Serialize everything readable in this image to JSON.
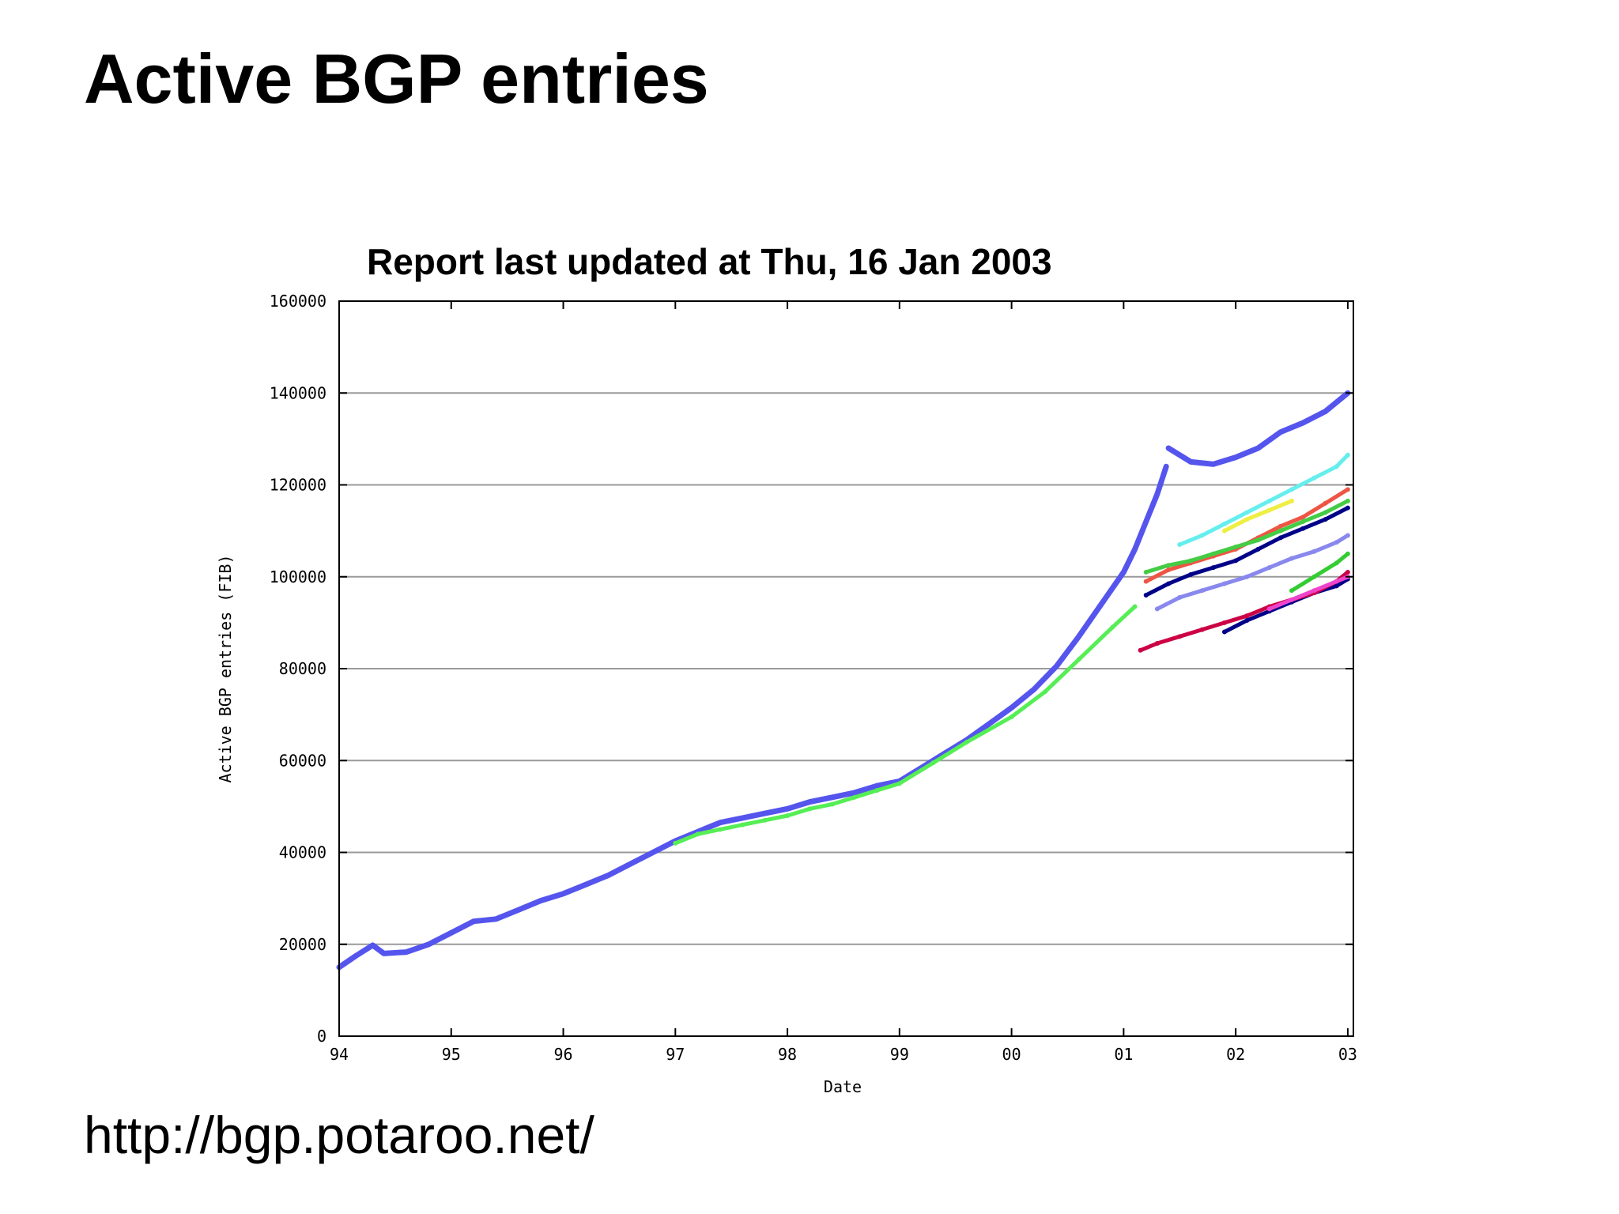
{
  "slide": {
    "title": "Active BGP entries",
    "footer_url": "http://bgp.potaroo.net/"
  },
  "chart_data": {
    "type": "scatter",
    "title": "Report last updated at Thu, 16 Jan 2003",
    "xlabel": "Date",
    "ylabel": "Active BGP entries (FIB)",
    "x_tick_labels": [
      "94",
      "95",
      "96",
      "97",
      "98",
      "99",
      "00",
      "01",
      "02",
      "03"
    ],
    "y_tick_labels": [
      "0",
      "20000",
      "40000",
      "60000",
      "80000",
      "100000",
      "120000",
      "140000",
      "160000"
    ],
    "xlim": [
      1994.0,
      2003.05
    ],
    "ylim": [
      0,
      160000
    ],
    "grid": "horizontal",
    "series": [
      {
        "color": "#5555ee",
        "points": [
          [
            1994.0,
            15000
          ],
          [
            1994.15,
            17500
          ],
          [
            1994.3,
            19800
          ],
          [
            1994.4,
            18000
          ],
          [
            1994.6,
            18300
          ],
          [
            1994.8,
            20000
          ],
          [
            1995.0,
            22500
          ],
          [
            1995.2,
            25000
          ],
          [
            1995.4,
            25500
          ],
          [
            1995.6,
            27500
          ],
          [
            1995.8,
            29500
          ],
          [
            1996.0,
            31000
          ],
          [
            1996.2,
            33000
          ],
          [
            1996.4,
            35000
          ],
          [
            1996.6,
            37500
          ],
          [
            1996.8,
            40000
          ],
          [
            1997.0,
            42500
          ],
          [
            1997.2,
            44500
          ],
          [
            1997.4,
            46500
          ],
          [
            1997.6,
            47500
          ],
          [
            1997.8,
            48500
          ],
          [
            1998.0,
            49500
          ],
          [
            1998.2,
            51000
          ],
          [
            1998.4,
            52000
          ],
          [
            1998.6,
            53000
          ],
          [
            1998.8,
            54500
          ],
          [
            1999.0,
            55500
          ],
          [
            1999.2,
            58500
          ],
          [
            1999.4,
            61500
          ],
          [
            1999.6,
            64500
          ],
          [
            1999.8,
            68000
          ],
          [
            2000.0,
            71500
          ],
          [
            2000.2,
            75500
          ],
          [
            2000.4,
            80500
          ],
          [
            2000.6,
            87000
          ],
          [
            2000.8,
            94000
          ],
          [
            2001.0,
            101000
          ],
          [
            2001.1,
            106000
          ],
          [
            2001.2,
            112000
          ],
          [
            2001.3,
            118000
          ],
          [
            2001.38,
            124000
          ]
        ]
      },
      {
        "color": "#5555ee",
        "points": [
          [
            2001.4,
            128000
          ],
          [
            2001.6,
            125000
          ],
          [
            2001.8,
            124500
          ],
          [
            2002.0,
            126000
          ],
          [
            2002.2,
            128000
          ],
          [
            2002.4,
            131500
          ],
          [
            2002.6,
            133500
          ],
          [
            2002.8,
            136000
          ],
          [
            2003.0,
            140000
          ]
        ]
      },
      {
        "color": "#55ee55",
        "points": [
          [
            1997.0,
            42000
          ],
          [
            1997.2,
            44000
          ],
          [
            1997.4,
            45000
          ],
          [
            1997.6,
            46000
          ],
          [
            1997.8,
            47000
          ],
          [
            1998.0,
            48000
          ],
          [
            1998.2,
            49500
          ],
          [
            1998.4,
            50500
          ],
          [
            1998.6,
            52000
          ],
          [
            1998.8,
            53500
          ],
          [
            1999.0,
            55000
          ],
          [
            1999.3,
            59500
          ],
          [
            1999.6,
            64000
          ],
          [
            2000.0,
            69500
          ],
          [
            2000.3,
            75000
          ],
          [
            2000.6,
            82000
          ],
          [
            2000.9,
            89000
          ],
          [
            2001.1,
            93500
          ]
        ]
      },
      {
        "color": "#66eeee",
        "points": [
          [
            2001.5,
            107000
          ],
          [
            2001.7,
            109000
          ],
          [
            2001.9,
            111500
          ],
          [
            2002.1,
            114000
          ],
          [
            2002.3,
            116500
          ],
          [
            2002.5,
            119000
          ],
          [
            2002.7,
            121500
          ],
          [
            2002.9,
            124000
          ],
          [
            2003.0,
            126500
          ]
        ]
      },
      {
        "color": "#ee5544",
        "points": [
          [
            2001.2,
            99000
          ],
          [
            2001.4,
            101500
          ],
          [
            2001.6,
            103000
          ],
          [
            2001.8,
            104500
          ],
          [
            2002.0,
            106000
          ],
          [
            2002.2,
            108500
          ],
          [
            2002.4,
            111000
          ],
          [
            2002.6,
            113000
          ],
          [
            2002.8,
            116000
          ],
          [
            2003.0,
            119000
          ]
        ]
      },
      {
        "color": "#44cc44",
        "points": [
          [
            2001.2,
            101000
          ],
          [
            2001.4,
            102500
          ],
          [
            2001.6,
            103500
          ],
          [
            2001.8,
            105000
          ],
          [
            2002.0,
            106500
          ],
          [
            2002.2,
            108000
          ],
          [
            2002.4,
            110000
          ],
          [
            2002.6,
            112000
          ],
          [
            2002.8,
            114000
          ],
          [
            2003.0,
            116500
          ]
        ]
      },
      {
        "color": "#000088",
        "points": [
          [
            2001.2,
            96000
          ],
          [
            2001.4,
            98500
          ],
          [
            2001.6,
            100500
          ],
          [
            2001.8,
            102000
          ],
          [
            2002.0,
            103500
          ],
          [
            2002.2,
            106000
          ],
          [
            2002.4,
            108500
          ],
          [
            2002.6,
            110500
          ],
          [
            2002.8,
            112500
          ],
          [
            2003.0,
            115000
          ]
        ]
      },
      {
        "color": "#8888ee",
        "points": [
          [
            2001.3,
            93000
          ],
          [
            2001.5,
            95500
          ],
          [
            2001.7,
            97000
          ],
          [
            2001.9,
            98500
          ],
          [
            2002.1,
            100000
          ],
          [
            2002.3,
            102000
          ],
          [
            2002.5,
            104000
          ],
          [
            2002.7,
            105500
          ],
          [
            2002.9,
            107500
          ],
          [
            2003.0,
            109000
          ]
        ]
      },
      {
        "color": "#000088",
        "points": [
          [
            2001.9,
            88000
          ],
          [
            2002.1,
            90500
          ],
          [
            2002.3,
            92500
          ],
          [
            2002.5,
            94500
          ],
          [
            2002.7,
            96500
          ],
          [
            2002.9,
            98000
          ],
          [
            2003.0,
            99500
          ]
        ]
      },
      {
        "color": "#cc0044",
        "points": [
          [
            2001.15,
            84000
          ],
          [
            2001.3,
            85500
          ],
          [
            2001.5,
            87000
          ],
          [
            2001.7,
            88500
          ],
          [
            2001.9,
            90000
          ],
          [
            2002.1,
            91500
          ],
          [
            2002.3,
            93500
          ],
          [
            2002.5,
            95000
          ],
          [
            2002.7,
            96500
          ],
          [
            2002.9,
            99000
          ],
          [
            2003.0,
            101000
          ]
        ]
      },
      {
        "color": "#ee44cc",
        "points": [
          [
            2002.3,
            93000
          ],
          [
            2002.5,
            95000
          ],
          [
            2002.7,
            97000
          ],
          [
            2002.9,
            99000
          ],
          [
            2003.0,
            100000
          ]
        ]
      },
      {
        "color": "#33cc33",
        "points": [
          [
            2002.5,
            97000
          ],
          [
            2002.7,
            100000
          ],
          [
            2002.9,
            103000
          ],
          [
            2003.0,
            105000
          ]
        ]
      },
      {
        "color": "#eeee44",
        "points": [
          [
            2001.9,
            110000
          ],
          [
            2002.1,
            112500
          ],
          [
            2002.3,
            114500
          ],
          [
            2002.5,
            116500
          ]
        ]
      }
    ]
  }
}
